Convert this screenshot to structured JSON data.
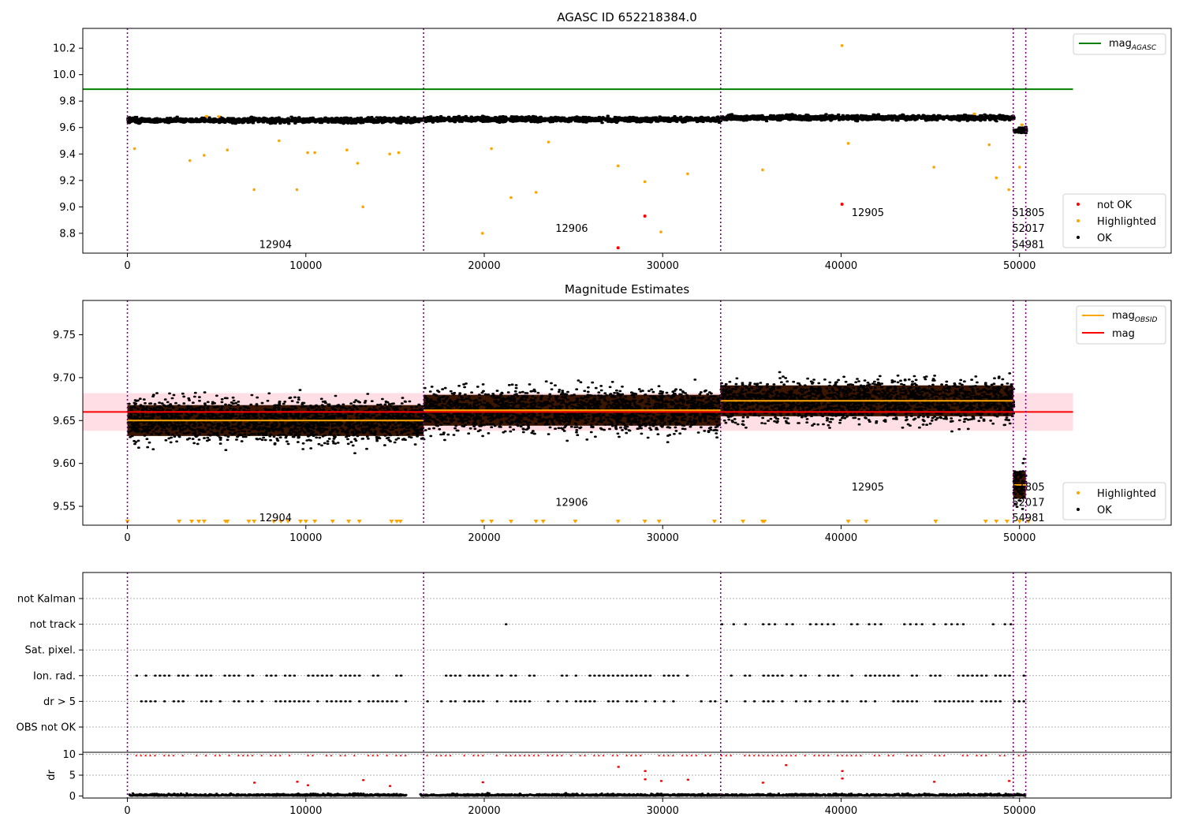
{
  "colors": {
    "ok": "#000000",
    "not_ok": "#ff0000",
    "highlighted": "#ffa500",
    "mag_agasc": "#008000",
    "mag": "#ff0000",
    "mag_obsid": "#ffa500",
    "obsid_line": "#800080",
    "mag_band": "#ffc0cb",
    "obs_fill": "#3a1500"
  },
  "chart_data": [
    {
      "type": "scatter",
      "title": "AGASC ID 652218384.0",
      "xlim": [
        -2500,
        58500
      ],
      "ylim": [
        8.65,
        10.35
      ],
      "yticks": [
        "8.8",
        "9.0",
        "9.2",
        "9.4",
        "9.6",
        "9.8",
        "10.0",
        "10.2"
      ],
      "xticks": [
        "0",
        "10000",
        "20000",
        "30000",
        "40000",
        "50000"
      ],
      "mag_agasc": 9.89,
      "legend_top": {
        "label": "mag",
        "sub": "AGASC"
      },
      "legend_bottom": [
        "not OK",
        "Highlighted",
        "OK"
      ],
      "obsid_boundaries": [
        0,
        16600,
        33250,
        49650,
        50350
      ],
      "obsids": [
        {
          "label": "12904",
          "x": 8300,
          "y": 8.72
        },
        {
          "label": "12906",
          "x": 24900,
          "y": 8.84
        },
        {
          "label": "12905",
          "x": 41500,
          "y": 8.96
        },
        {
          "label": "51805",
          "x": 50500,
          "y": 8.96
        },
        {
          "label": "52017",
          "x": 50500,
          "y": 8.84
        },
        {
          "label": "54981",
          "x": 50500,
          "y": 8.72
        }
      ],
      "segments": [
        {
          "x0": 0,
          "x1": 16600,
          "center": 9.655,
          "spread": 0.018
        },
        {
          "x0": 16600,
          "x1": 33250,
          "center": 9.662,
          "spread": 0.018
        },
        {
          "x0": 33250,
          "x1": 49650,
          "center": 9.675,
          "spread": 0.018
        },
        {
          "x0": 49650,
          "x1": 50350,
          "center": 9.58,
          "spread": 0.025
        }
      ],
      "not_ok_points": [
        [
          27500,
          8.69
        ],
        [
          29000,
          8.93
        ],
        [
          40050,
          9.02
        ]
      ],
      "outlier_points": [
        [
          400,
          9.44
        ],
        [
          3500,
          9.35
        ],
        [
          4300,
          9.39
        ],
        [
          5600,
          9.43
        ],
        [
          7100,
          9.13
        ],
        [
          8500,
          9.5
        ],
        [
          9500,
          9.13
        ],
        [
          10100,
          9.41
        ],
        [
          10500,
          9.41
        ],
        [
          12300,
          9.43
        ],
        [
          12900,
          9.33
        ],
        [
          13200,
          9.0
        ],
        [
          14700,
          9.4
        ],
        [
          15200,
          9.41
        ],
        [
          19900,
          8.8
        ],
        [
          20400,
          9.44
        ],
        [
          21500,
          9.07
        ],
        [
          22900,
          9.11
        ],
        [
          23600,
          9.49
        ],
        [
          27500,
          9.31
        ],
        [
          29000,
          9.19
        ],
        [
          29900,
          8.81
        ],
        [
          31400,
          9.25
        ],
        [
          35600,
          9.28
        ],
        [
          40050,
          10.22
        ],
        [
          40400,
          9.48
        ],
        [
          45200,
          9.3
        ],
        [
          48300,
          9.47
        ],
        [
          48700,
          9.22
        ],
        [
          49400,
          9.13
        ],
        [
          50000,
          9.3
        ]
      ]
    },
    {
      "type": "scatter",
      "title": "Magnitude Estimates",
      "xlim": [
        -2500,
        58500
      ],
      "ylim": [
        9.528,
        9.79
      ],
      "yticks": [
        "9.55",
        "9.60",
        "9.65",
        "9.70",
        "9.75"
      ],
      "xticks": [
        "0",
        "10000",
        "20000",
        "30000",
        "40000",
        "50000"
      ],
      "mag": 9.66,
      "mag_band": [
        9.638,
        9.682
      ],
      "mag_obsid": [
        {
          "x0": 0,
          "x1": 16600,
          "value": 9.65
        },
        {
          "x0": 16600,
          "x1": 33250,
          "value": 9.662
        },
        {
          "x0": 33250,
          "x1": 49650,
          "value": 9.673
        },
        {
          "x0": 49650,
          "x1": 50350,
          "value": 9.575
        }
      ],
      "legend_top": [
        {
          "label": "mag",
          "sub": "OBSID"
        },
        {
          "label": "mag",
          "sub": ""
        }
      ],
      "legend_bottom": [
        "Highlighted",
        "OK"
      ],
      "obsids": [
        {
          "label": "12904",
          "x": 8300,
          "y": 9.537
        },
        {
          "label": "12906",
          "x": 24900,
          "y": 9.555
        },
        {
          "label": "12905",
          "x": 41500,
          "y": 9.573
        },
        {
          "label": "51805",
          "x": 50500,
          "y": 9.573
        },
        {
          "label": "52017",
          "x": 50500,
          "y": 9.555
        },
        {
          "label": "54981",
          "x": 50500,
          "y": 9.537
        }
      ],
      "low_markers": [
        0,
        2900,
        3600,
        4000,
        4300,
        5500,
        5600,
        6800,
        7100,
        8200,
        8600,
        9000,
        9700,
        10000,
        10500,
        11500,
        12400,
        13000,
        14800,
        15100,
        15300,
        19900,
        20400,
        21500,
        22900,
        23300,
        25100,
        27500,
        29000,
        29800,
        32900,
        34500,
        35600,
        35700,
        40400,
        41400,
        45300,
        48100,
        48700,
        49300,
        50000,
        50500
      ]
    },
    {
      "type": "scatter",
      "categories": [
        "not Kalman",
        "not track",
        "Sat. pixel.",
        "Ion. rad.",
        "dr > 5",
        "OBS not OK"
      ],
      "xlim": [
        -2500,
        58500
      ],
      "xticks": [
        "0",
        "10000",
        "20000",
        "30000",
        "40000",
        "50000"
      ],
      "dr_ylabel": "dr",
      "dr_ylim": [
        -0.5,
        10.5
      ],
      "dr_yticks": [
        "0",
        "5",
        "10"
      ],
      "not_track_ranges": [
        [
          21200,
          21300
        ],
        [
          33300,
          47000
        ],
        [
          48500,
          49600
        ]
      ],
      "flag_ranges": [
        [
          500,
          15600
        ],
        [
          16800,
          33100
        ],
        [
          33300,
          49500
        ],
        [
          49700,
          50300
        ]
      ]
    }
  ]
}
